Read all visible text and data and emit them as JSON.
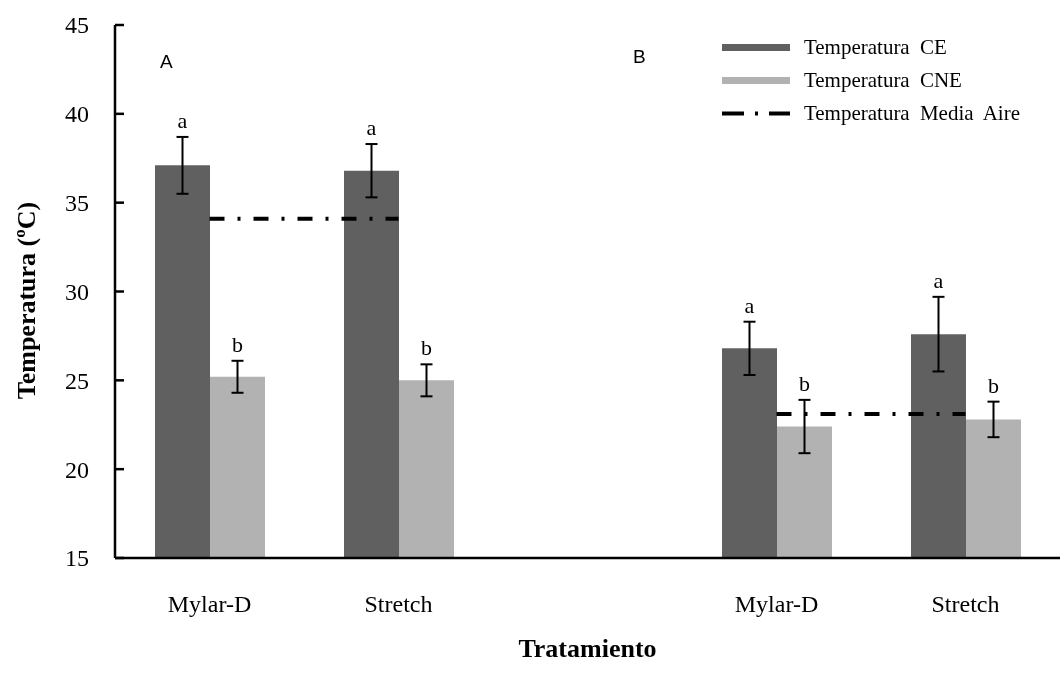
{
  "chart_data": {
    "type": "bar",
    "categories": [
      "Mylar-D",
      "Stretch",
      null,
      "Mylar-D",
      "Stretch"
    ],
    "series": [
      {
        "name": "Temperatura CE",
        "color": "#606060",
        "values": [
          37.1,
          36.8,
          null,
          26.8,
          27.6
        ],
        "errors": [
          1.6,
          1.5,
          null,
          1.5,
          2.1
        ],
        "value_labels": [
          "a",
          "a",
          null,
          "a",
          "a"
        ]
      },
      {
        "name": "Temperatura CNE",
        "color": "#b2b2b2",
        "values": [
          25.2,
          25.0,
          null,
          22.4,
          22.8
        ],
        "errors": [
          0.9,
          0.9,
          null,
          1.5,
          1.0
        ],
        "value_labels": [
          "b",
          "b",
          null,
          "b",
          "b"
        ]
      },
      {
        "name": "Temperatura Media Aire",
        "type": "line",
        "color": "#000000",
        "values": [
          34.1,
          34.1,
          null,
          23.1,
          23.1
        ],
        "line_style": "dashdot"
      }
    ],
    "xlabel": "Tratamiento",
    "ylabel": "Temperatura (ºC)",
    "ylim": [
      15,
      45
    ],
    "yticks": [
      15,
      20,
      25,
      30,
      35,
      40,
      45
    ],
    "legend": "top right",
    "annotations": [
      "A",
      "B"
    ]
  }
}
